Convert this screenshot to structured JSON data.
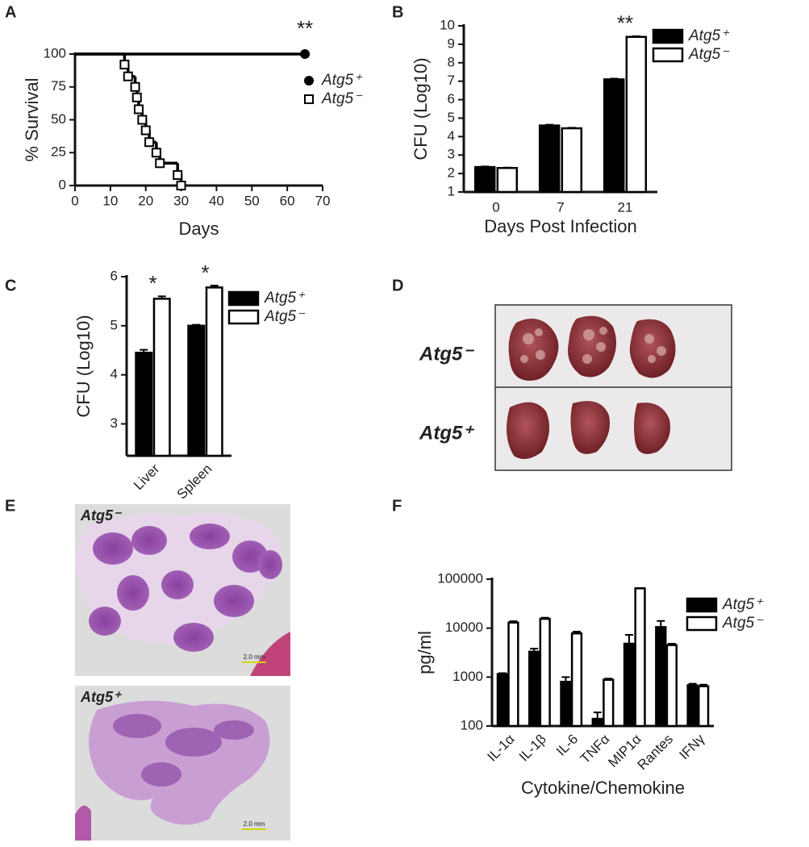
{
  "panels": [
    "A",
    "B",
    "C",
    "D",
    "E",
    "F"
  ],
  "chart_data": [
    {
      "type": "line",
      "step": true,
      "y_label": "% Survival",
      "x_label": "Days",
      "xlim": [
        0,
        70
      ],
      "xticks": [
        0,
        10,
        20,
        30,
        40,
        50,
        60,
        70
      ],
      "ylim": [
        0,
        100
      ],
      "yticks": [
        0,
        25,
        50,
        75,
        100
      ],
      "annotations": [
        {
          "text": "**",
          "x": 65
        }
      ],
      "series": [
        {
          "name": "Atg5⁺",
          "color": "#000000",
          "marker": "circle",
          "x": [
            0,
            65
          ],
          "values": [
            100,
            100
          ]
        },
        {
          "name": "Atg5⁻",
          "color": "#000000",
          "marker": "square",
          "x": [
            0,
            14,
            15,
            17,
            17.5,
            18,
            19,
            20,
            21,
            23,
            24,
            29,
            30
          ],
          "values": [
            100,
            92,
            83,
            75,
            67,
            58,
            50,
            42,
            33,
            25,
            17,
            8,
            0
          ]
        }
      ]
    },
    {
      "type": "bar",
      "y_label": "CFU (Log10)",
      "x_label": "Days Post Infection",
      "categories": [
        "0",
        "7",
        "21"
      ],
      "ylim": [
        1,
        10
      ],
      "yticks": [
        1,
        2,
        3,
        4,
        5,
        6,
        7,
        8,
        9,
        10
      ],
      "annotations": [
        {
          "text": "**",
          "category": 2
        }
      ],
      "series": [
        {
          "name": "Atg5⁺",
          "color": "#000000",
          "values": [
            2.35,
            4.6,
            7.1
          ],
          "errors": [
            0.03,
            0.04,
            0.04
          ]
        },
        {
          "name": "Atg5⁻",
          "color": "#ffffff",
          "values": [
            2.3,
            4.45,
            9.4
          ],
          "errors": [
            0.02,
            0.03,
            0.04
          ]
        }
      ]
    },
    {
      "type": "bar",
      "y_label": "CFU (Log10)",
      "rotate_labels": true,
      "categories": [
        "Liver",
        "Spleen"
      ],
      "ylim": [
        2.35,
        6
      ],
      "yticks": [
        3,
        4,
        5,
        6
      ],
      "annotations": [
        {
          "text": "*",
          "category": 0
        },
        {
          "text": "*",
          "category": 1
        }
      ],
      "series": [
        {
          "name": "Atg5⁺",
          "color": "#000000",
          "values": [
            4.45,
            5.0
          ],
          "errors": [
            0.06,
            0.02
          ]
        },
        {
          "name": "Atg5⁻",
          "color": "#ffffff",
          "values": [
            5.55,
            5.78
          ],
          "errors": [
            0.05,
            0.04
          ]
        }
      ]
    },
    {
      "type": "bar",
      "y_label": "pg/ml",
      "x_label": "Cytokine/Chemokine",
      "rotate_labels": true,
      "log_y": true,
      "categories": [
        "IL-1α",
        "IL-1β",
        "IL-6",
        "TNFα",
        "MIP1α",
        "Rantes",
        "IFNγ"
      ],
      "ylim": [
        100,
        100000
      ],
      "yticks": [
        100,
        1000,
        10000,
        100000
      ],
      "series": [
        {
          "name": "Atg5⁺",
          "color": "#000000",
          "values": [
            1150,
            3300,
            800,
            140,
            4800,
            10500,
            680
          ],
          "errors": [
            50,
            500,
            200,
            50,
            2500,
            3500,
            50
          ]
        },
        {
          "name": "Atg5⁻",
          "color": "#ffffff",
          "values": [
            13000,
            15500,
            7800,
            880,
            65000,
            4500,
            650
          ],
          "errors": [
            800,
            800,
            700,
            50,
            1000,
            300,
            50
          ]
        }
      ]
    }
  ],
  "photos": [
    {
      "labels": [
        "Atg5⁻",
        "Atg5⁺"
      ]
    },
    {
      "labels": [
        "Atg5⁻",
        "Atg5⁺"
      ],
      "scale_bar": "2.0 mm"
    }
  ]
}
